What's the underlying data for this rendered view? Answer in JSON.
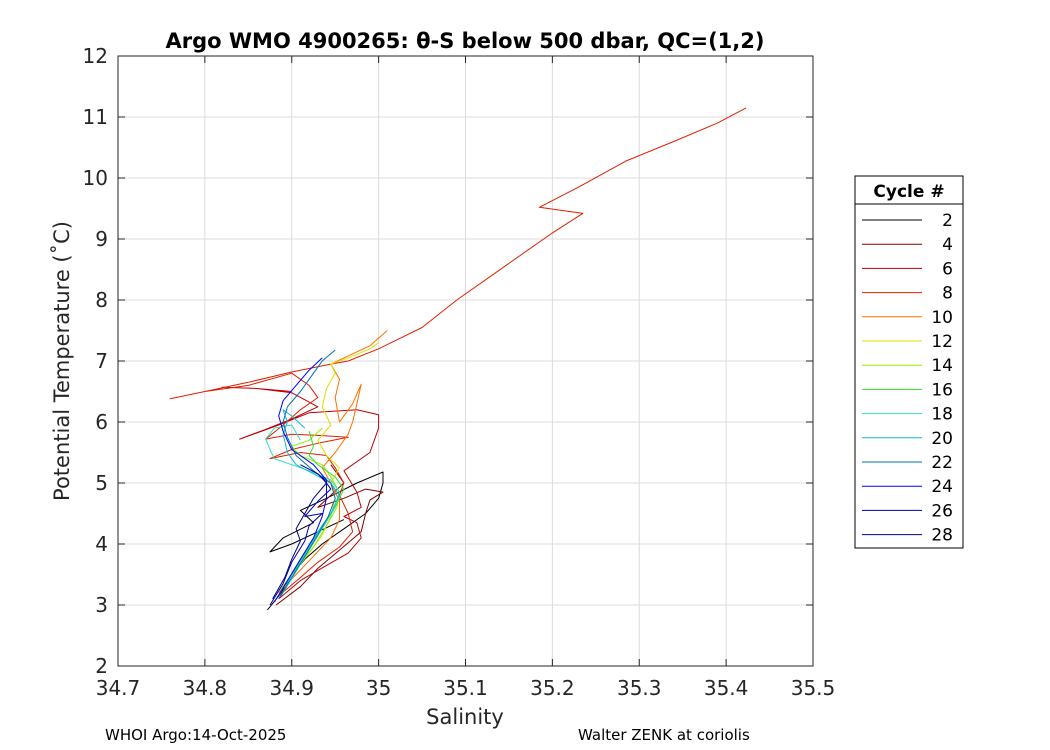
{
  "chart_data": {
    "type": "line",
    "title": "Argo WMO 4900265: θ-S below 500 dbar,  QC=(1,2)",
    "xlabel": "Salinity",
    "ylabel": "Potential Temperature (˚C)",
    "xlim": [
      34.7,
      35.5
    ],
    "ylim": [
      2,
      12
    ],
    "xticks": [
      "34.7",
      "34.8",
      "34.9",
      "35",
      "35.1",
      "35.2",
      "35.3",
      "35.4",
      "35.5"
    ],
    "yticks": [
      "2",
      "3",
      "4",
      "5",
      "6",
      "7",
      "8",
      "9",
      "10",
      "11",
      "12"
    ],
    "grid": true,
    "legend": {
      "title": "Cycle #",
      "position": "right"
    },
    "series": [
      {
        "name": "2",
        "color": "#000000",
        "points": [
          [
            34.872,
            2.92
          ],
          [
            34.888,
            3.2
          ],
          [
            34.9,
            3.5
          ],
          [
            34.915,
            3.75
          ],
          [
            34.935,
            4.0
          ],
          [
            34.96,
            4.25
          ],
          [
            34.985,
            4.5
          ],
          [
            35.0,
            4.75
          ],
          [
            35.005,
            5.0
          ],
          [
            35.005,
            5.18
          ],
          [
            34.975,
            5.0
          ],
          [
            34.94,
            4.75
          ],
          [
            34.91,
            4.55
          ],
          [
            34.925,
            4.35
          ],
          [
            34.89,
            4.1
          ],
          [
            34.875,
            3.87
          ],
          [
            34.9,
            4.0
          ],
          [
            34.93,
            4.2
          ],
          [
            34.96,
            4.4
          ]
        ]
      },
      {
        "name": "4",
        "color": "#800000",
        "points": [
          [
            34.882,
            3.0
          ],
          [
            34.91,
            3.3
          ],
          [
            34.93,
            3.6
          ],
          [
            34.955,
            3.9
          ],
          [
            34.98,
            4.2
          ],
          [
            34.985,
            4.5
          ],
          [
            34.99,
            4.72
          ],
          [
            35.005,
            4.85
          ],
          [
            34.985,
            4.9
          ],
          [
            34.96,
            4.75
          ],
          [
            34.93,
            4.6
          ],
          [
            34.945,
            4.8
          ],
          [
            34.96,
            5.0
          ],
          [
            34.945,
            5.3
          ]
        ]
      },
      {
        "name": "6",
        "color": "#c00000",
        "points": [
          [
            34.885,
            3.1
          ],
          [
            34.91,
            3.4
          ],
          [
            34.94,
            3.65
          ],
          [
            34.965,
            3.85
          ],
          [
            34.98,
            4.1
          ],
          [
            34.975,
            4.35
          ],
          [
            34.96,
            4.45
          ],
          [
            34.98,
            4.6
          ],
          [
            34.975,
            4.85
          ],
          [
            34.96,
            5.2
          ],
          [
            34.99,
            5.5
          ],
          [
            35.0,
            5.9
          ],
          [
            35.0,
            6.12
          ],
          [
            34.975,
            6.2
          ],
          [
            34.92,
            6.15
          ],
          [
            34.885,
            5.95
          ],
          [
            34.84,
            5.72
          ],
          [
            34.87,
            5.88
          ],
          [
            34.9,
            6.05
          ],
          [
            34.93,
            6.25
          ],
          [
            34.9,
            6.48
          ],
          [
            34.86,
            6.55
          ],
          [
            34.82,
            6.57
          ],
          [
            34.86,
            6.55
          ],
          [
            34.9,
            6.5
          ]
        ]
      },
      {
        "name": "8",
        "color": "#e02000",
        "points": [
          [
            34.885,
            3.15
          ],
          [
            34.91,
            3.45
          ],
          [
            34.93,
            3.7
          ],
          [
            34.955,
            3.95
          ],
          [
            34.97,
            4.2
          ],
          [
            34.965,
            4.5
          ],
          [
            34.955,
            4.8
          ],
          [
            34.96,
            5.0
          ],
          [
            34.95,
            5.25
          ],
          [
            34.94,
            5.45
          ],
          [
            34.91,
            5.5
          ],
          [
            34.875,
            5.4
          ],
          [
            34.9,
            5.55
          ],
          [
            34.93,
            5.65
          ],
          [
            34.965,
            5.75
          ],
          [
            34.93,
            5.78
          ],
          [
            34.9,
            5.8
          ],
          [
            34.87,
            5.72
          ],
          [
            34.89,
            5.95
          ],
          [
            34.91,
            6.2
          ],
          [
            34.93,
            6.4
          ],
          [
            34.92,
            6.6
          ],
          [
            34.9,
            6.8
          ],
          [
            34.85,
            6.6
          ],
          [
            34.8,
            6.5
          ],
          [
            34.76,
            6.38
          ],
          [
            34.8,
            6.5
          ],
          [
            34.85,
            6.65
          ],
          [
            34.9,
            6.82
          ],
          [
            34.945,
            6.95
          ],
          [
            34.965,
            7.0
          ],
          [
            35.0,
            7.2
          ],
          [
            35.05,
            7.55
          ],
          [
            35.09,
            8.0
          ],
          [
            35.15,
            8.6
          ],
          [
            35.2,
            9.1
          ],
          [
            35.235,
            9.42
          ],
          [
            35.185,
            9.52
          ],
          [
            35.23,
            9.85
          ],
          [
            35.285,
            10.28
          ],
          [
            35.34,
            10.6
          ],
          [
            35.39,
            10.9
          ],
          [
            35.423,
            11.15
          ]
        ]
      },
      {
        "name": "10",
        "color": "#ff7000",
        "points": [
          [
            34.885,
            3.2
          ],
          [
            34.905,
            3.5
          ],
          [
            34.925,
            3.8
          ],
          [
            34.945,
            4.1
          ],
          [
            34.955,
            4.4
          ],
          [
            34.955,
            4.7
          ],
          [
            34.945,
            5.0
          ],
          [
            34.935,
            5.25
          ],
          [
            34.95,
            5.5
          ],
          [
            34.965,
            5.8
          ],
          [
            34.97,
            6.0
          ],
          [
            34.975,
            6.3
          ],
          [
            34.98,
            6.62
          ],
          [
            34.97,
            6.3
          ],
          [
            34.955,
            6.0
          ],
          [
            34.95,
            6.4
          ],
          [
            34.955,
            6.7
          ],
          [
            34.945,
            6.95
          ],
          [
            34.96,
            7.05
          ],
          [
            34.99,
            7.25
          ],
          [
            35.01,
            7.5
          ]
        ]
      },
      {
        "name": "12",
        "color": "#e0e000",
        "points": [
          [
            34.885,
            3.22
          ],
          [
            34.9,
            3.5
          ],
          [
            34.92,
            3.85
          ],
          [
            34.935,
            4.15
          ],
          [
            34.945,
            4.45
          ],
          [
            34.95,
            4.75
          ],
          [
            34.945,
            5.0
          ],
          [
            34.955,
            5.25
          ],
          [
            34.94,
            5.45
          ],
          [
            34.93,
            5.7
          ],
          [
            34.945,
            5.95
          ],
          [
            34.935,
            6.25
          ],
          [
            34.94,
            6.55
          ],
          [
            34.95,
            6.8
          ],
          [
            34.945,
            6.95
          ],
          [
            34.965,
            7.05
          ],
          [
            34.99,
            7.2
          ],
          [
            35.0,
            7.3
          ]
        ]
      },
      {
        "name": "14",
        "color": "#90f000",
        "points": [
          [
            34.888,
            3.25
          ],
          [
            34.905,
            3.6
          ],
          [
            34.925,
            3.95
          ],
          [
            34.94,
            4.3
          ],
          [
            34.952,
            4.6
          ],
          [
            34.955,
            4.85
          ],
          [
            34.945,
            5.1
          ],
          [
            34.935,
            5.3
          ],
          [
            34.91,
            5.45
          ],
          [
            34.9,
            5.6
          ],
          [
            34.92,
            5.7
          ],
          [
            34.935,
            5.9
          ]
        ]
      },
      {
        "name": "16",
        "color": "#30e030",
        "points": [
          [
            34.888,
            3.25
          ],
          [
            34.905,
            3.6
          ],
          [
            34.92,
            3.95
          ],
          [
            34.935,
            4.3
          ],
          [
            34.95,
            4.6
          ],
          [
            34.96,
            4.9
          ],
          [
            34.95,
            5.1
          ],
          [
            34.93,
            5.3
          ],
          [
            34.92,
            5.45
          ],
          [
            34.925,
            5.6
          ],
          [
            34.92,
            5.85
          ]
        ]
      },
      {
        "name": "18",
        "color": "#30e0c0",
        "points": [
          [
            34.89,
            3.2
          ],
          [
            34.905,
            3.55
          ],
          [
            34.92,
            3.9
          ],
          [
            34.935,
            4.25
          ],
          [
            34.948,
            4.55
          ],
          [
            34.955,
            4.85
          ],
          [
            34.945,
            5.05
          ],
          [
            34.92,
            5.2
          ],
          [
            34.9,
            5.3
          ],
          [
            34.88,
            5.4
          ],
          [
            34.875,
            5.55
          ],
          [
            34.87,
            5.72
          ],
          [
            34.88,
            5.9
          ],
          [
            34.9,
            5.95
          ],
          [
            34.91,
            5.7
          ]
        ]
      },
      {
        "name": "20",
        "color": "#10b8d8",
        "points": [
          [
            34.888,
            3.15
          ],
          [
            34.9,
            3.5
          ],
          [
            34.915,
            3.85
          ],
          [
            34.93,
            4.2
          ],
          [
            34.945,
            4.5
          ],
          [
            34.955,
            4.8
          ],
          [
            34.945,
            5.0
          ],
          [
            34.925,
            5.15
          ],
          [
            34.905,
            5.3
          ],
          [
            34.895,
            5.5
          ],
          [
            34.89,
            5.8
          ],
          [
            34.895,
            6.0
          ],
          [
            34.89,
            6.2
          ],
          [
            34.9,
            6.1
          ],
          [
            34.915,
            5.9
          ]
        ]
      },
      {
        "name": "22",
        "color": "#0070b0",
        "points": [
          [
            34.885,
            3.1
          ],
          [
            34.9,
            3.45
          ],
          [
            34.915,
            3.8
          ],
          [
            34.93,
            4.15
          ],
          [
            34.942,
            4.45
          ],
          [
            34.95,
            4.75
          ],
          [
            34.945,
            5.0
          ],
          [
            34.925,
            5.2
          ],
          [
            34.905,
            5.45
          ],
          [
            34.895,
            5.75
          ],
          [
            34.89,
            6.0
          ],
          [
            34.895,
            6.25
          ],
          [
            34.91,
            6.5
          ],
          [
            34.925,
            6.8
          ],
          [
            34.935,
            7.0
          ],
          [
            34.95,
            7.18
          ]
        ]
      },
      {
        "name": "24",
        "color": "#0000ff",
        "points": [
          [
            34.88,
            3.05
          ],
          [
            34.895,
            3.4
          ],
          [
            34.91,
            3.75
          ],
          [
            34.925,
            4.1
          ],
          [
            34.935,
            4.45
          ],
          [
            34.94,
            4.75
          ],
          [
            34.94,
            5.05
          ],
          [
            34.925,
            5.3
          ],
          [
            34.9,
            5.55
          ],
          [
            34.89,
            5.85
          ],
          [
            34.885,
            6.1
          ],
          [
            34.89,
            6.35
          ],
          [
            34.905,
            6.6
          ],
          [
            34.92,
            6.85
          ],
          [
            34.935,
            7.05
          ]
        ]
      },
      {
        "name": "26",
        "color": "#0000b0",
        "points": [
          [
            34.875,
            3.0
          ],
          [
            34.89,
            3.35
          ],
          [
            34.9,
            3.7
          ],
          [
            34.915,
            4.05
          ],
          [
            34.92,
            4.3
          ],
          [
            34.935,
            4.5
          ],
          [
            34.915,
            4.45
          ],
          [
            34.93,
            4.7
          ],
          [
            34.945,
            4.9
          ],
          [
            34.935,
            5.1
          ]
        ]
      },
      {
        "name": "28",
        "color": "#000080",
        "points": [
          [
            34.878,
            3.1
          ],
          [
            34.892,
            3.45
          ],
          [
            34.9,
            3.75
          ],
          [
            34.91,
            4.05
          ],
          [
            34.905,
            4.25
          ],
          [
            34.915,
            4.5
          ],
          [
            34.925,
            4.75
          ],
          [
            34.94,
            5.0
          ],
          [
            34.93,
            5.15
          ],
          [
            34.91,
            5.3
          ]
        ]
      }
    ]
  },
  "footer": {
    "left": "WHOI Argo:14-Oct-2025",
    "right": "Walter ZENK at coriolis"
  }
}
